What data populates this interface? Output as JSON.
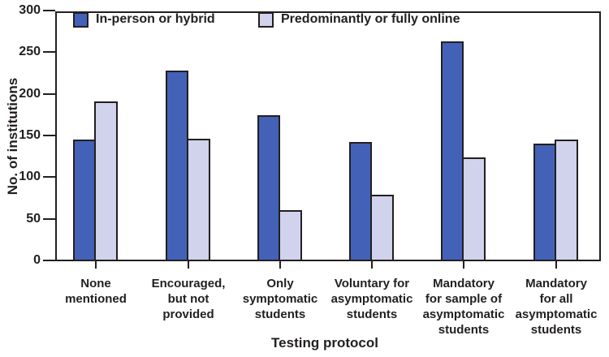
{
  "chart_data": {
    "type": "bar",
    "title": "",
    "xlabel": "Testing protocol",
    "ylabel": "No. of institutions",
    "ylim": [
      0,
      300
    ],
    "yticks": [
      0,
      50,
      100,
      150,
      200,
      250,
      300
    ],
    "grid": false,
    "legend_position": "top-left-inside",
    "categories": [
      "None mentioned",
      "Encouraged, but not provided",
      "Only symptomatic students",
      "Voluntary for asymptomatic students",
      "Mandatory for sample of asymptomatic students",
      "Mandatory for all asymptomatic students"
    ],
    "categories_lines": [
      [
        "None",
        "mentioned"
      ],
      [
        "Encouraged,",
        "but not",
        "provided"
      ],
      [
        "Only",
        "symptomatic",
        "students"
      ],
      [
        "Voluntary for",
        "asymptomatic",
        "students"
      ],
      [
        "Mandatory",
        "for sample of",
        "asymptomatic",
        "students"
      ],
      [
        "Mandatory",
        "for all",
        "asymptomatic",
        "students"
      ]
    ],
    "series": [
      {
        "name": "In-person or hybrid",
        "color": "#4361B6",
        "values": [
          146,
          229,
          175,
          143,
          264,
          141
        ]
      },
      {
        "name": "Predominantly or fully online",
        "color": "#D1D3EC",
        "values": [
          192,
          147,
          61,
          80,
          125,
          146
        ]
      }
    ]
  },
  "colors": {
    "axis": "#231F20",
    "text": "#231F20",
    "background": "#FFFFFF",
    "bar_border": "#231F20"
  }
}
